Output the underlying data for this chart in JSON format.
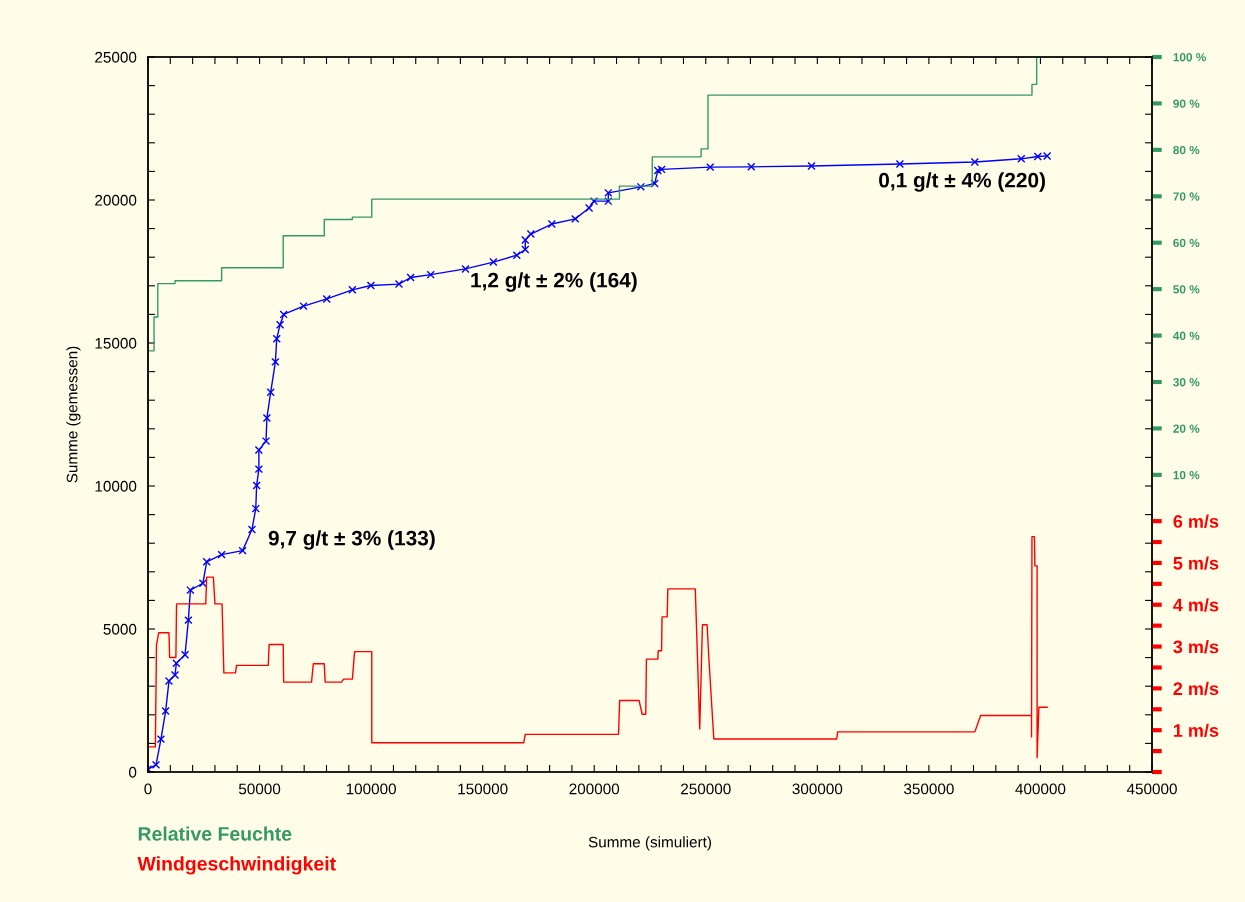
{
  "chart_data": {
    "type": "line",
    "xlabel": "Summe (simuliert)",
    "ylabel": "Summe (gemessen)",
    "grid": false,
    "legend": "bottom left",
    "xlim": [
      0,
      450000
    ],
    "xticks": [
      0,
      {
        "value": 10000,
        "label": null
      },
      {
        "value": 20000,
        "label": null
      },
      {
        "value": 30000,
        "label": null
      },
      {
        "value": 40000,
        "label": null
      },
      50000,
      {
        "value": 60000,
        "label": null
      },
      {
        "value": 70000,
        "label": null
      },
      {
        "value": 80000,
        "label": null
      },
      {
        "value": 90000,
        "label": null
      },
      100000,
      {
        "value": 110000,
        "label": null
      },
      {
        "value": 120000,
        "label": null
      },
      {
        "value": 130000,
        "label": null
      },
      {
        "value": 140000,
        "label": null
      },
      150000,
      {
        "value": 160000,
        "label": null
      },
      {
        "value": 170000,
        "label": null
      },
      {
        "value": 180000,
        "label": null
      },
      {
        "value": 190000,
        "label": null
      },
      200000,
      {
        "value": 210000,
        "label": null
      },
      {
        "value": 220000,
        "label": null
      },
      {
        "value": 230000,
        "label": null
      },
      {
        "value": 240000,
        "label": null
      },
      250000,
      {
        "value": 260000,
        "label": null
      },
      {
        "value": 270000,
        "label": null
      },
      {
        "value": 280000,
        "label": null
      },
      {
        "value": 290000,
        "label": null
      },
      300000,
      {
        "value": 310000,
        "label": null
      },
      {
        "value": 320000,
        "label": null
      },
      {
        "value": 330000,
        "label": null
      },
      {
        "value": 340000,
        "label": null
      },
      350000,
      {
        "value": 360000,
        "label": null
      },
      {
        "value": 370000,
        "label": null
      },
      {
        "value": 380000,
        "label": null
      },
      {
        "value": 390000,
        "label": null
      },
      400000,
      {
        "value": 410000,
        "label": null
      },
      {
        "value": 420000,
        "label": null
      },
      {
        "value": 430000,
        "label": null
      },
      {
        "value": 440000,
        "label": null
      },
      450000
    ],
    "ylim": [
      0,
      25000
    ],
    "yticks": [
      0,
      {
        "value": 1000,
        "label": null
      },
      {
        "value": 2000,
        "label": null
      },
      {
        "value": 3000,
        "label": null
      },
      {
        "value": 4000,
        "label": null
      },
      5000,
      {
        "value": 6000,
        "label": null
      },
      {
        "value": 7000,
        "label": null
      },
      {
        "value": 8000,
        "label": null
      },
      {
        "value": 9000,
        "label": null
      },
      10000,
      {
        "value": 11000,
        "label": null
      },
      {
        "value": 12000,
        "label": null
      },
      {
        "value": 13000,
        "label": null
      },
      {
        "value": 14000,
        "label": null
      },
      15000,
      {
        "value": 16000,
        "label": null
      },
      {
        "value": 17000,
        "label": null
      },
      {
        "value": 18000,
        "label": null
      },
      {
        "value": 19000,
        "label": null
      },
      20000,
      {
        "value": 21000,
        "label": null
      },
      {
        "value": 22000,
        "label": null
      },
      {
        "value": 23000,
        "label": null
      },
      {
        "value": 24000,
        "label": null
      },
      25000
    ],
    "y2lim": [
      -54,
      100
    ],
    "y2ticks": [
      {
        "value": 10,
        "label": "10 %"
      },
      {
        "value": 20,
        "label": "20 %"
      },
      {
        "value": 30,
        "label": "30 %"
      },
      {
        "value": 40,
        "label": "40 %"
      },
      {
        "value": 50,
        "label": "50 %"
      },
      {
        "value": 60,
        "label": "60 %"
      },
      {
        "value": 70,
        "label": "70 %"
      },
      {
        "value": 80,
        "label": "80 %"
      },
      {
        "value": 90,
        "label": "90 %"
      },
      {
        "value": 100,
        "label": "100 %"
      }
    ],
    "y3lim": [
      0,
      17.1
    ],
    "y3ticks": [
      {
        "value": 0,
        "label": null
      },
      {
        "value": 0.5,
        "label": null
      },
      {
        "value": 1,
        "label": "1 m/s"
      },
      {
        "value": 1.5,
        "label": null
      },
      {
        "value": 2,
        "label": "2 m/s"
      },
      {
        "value": 2.5,
        "label": null
      },
      {
        "value": 3,
        "label": "3 m/s"
      },
      {
        "value": 3.5,
        "label": null
      },
      {
        "value": 4,
        "label": "4 m/s"
      },
      {
        "value": 4.5,
        "label": null
      },
      {
        "value": 5,
        "label": "5 m/s"
      },
      {
        "value": 5.5,
        "label": null
      },
      {
        "value": 6,
        "label": "6 m/s"
      }
    ],
    "annotations": [
      "9,7 g/t ± 3% (133)",
      "1,2 g/t ± 2% (164)",
      "0,1 g/t ± 4% (220)"
    ],
    "series": [
      {
        "type": "step",
        "axis": "y2",
        "name": "Relative Feuchte",
        "color": "#339966",
        "marker": "none",
        "x": [
          0,
          2700,
          4400,
          12100,
          33000,
          60600,
          79000,
          91600,
          100300,
          211300,
          226000,
          247900,
          251000,
          396200,
          398300
        ],
        "values": [
          36.7,
          44.0,
          51.2,
          51.8,
          54.6,
          61.5,
          65.0,
          65.5,
          69.4,
          72.2,
          78.5,
          80.2,
          91.8,
          94.1,
          100
        ]
      },
      {
        "type": "line",
        "axis": "y3",
        "name": "Windgeschwindigkeit",
        "color": "#ff0000",
        "marker": "none",
        "x": [
          0,
          3300,
          3800,
          4800,
          9400,
          9700,
          12500,
          12800,
          25900,
          26300,
          29300,
          30000,
          33200,
          34000,
          39200,
          39700,
          53900,
          54300,
          60600,
          60800,
          73300,
          74100,
          79000,
          79400,
          86700,
          87700,
          91600,
          92600,
          100300,
          100300,
          168400,
          169100,
          210900,
          211400,
          220100,
          221500,
          223100,
          223400,
          228500,
          228700,
          230200,
          230400,
          232700,
          233000,
          245300,
          247300,
          248500,
          250600,
          251300,
          253600,
          308700,
          309100,
          370600,
          373200,
          396000,
          396000,
          396200,
          397300,
          397500,
          398500,
          398500,
          399300,
          403000
        ],
        "values": [
          0.6,
          0.6,
          3.04,
          3.33,
          3.33,
          2.74,
          2.74,
          4.02,
          4.02,
          4.66,
          4.66,
          4.02,
          4.02,
          2.37,
          2.37,
          2.55,
          2.55,
          3.05,
          3.05,
          2.15,
          2.15,
          2.59,
          2.59,
          2.15,
          2.15,
          2.22,
          2.22,
          2.88,
          2.88,
          0.7,
          0.7,
          0.9,
          0.9,
          1.71,
          1.71,
          1.38,
          1.38,
          2.7,
          2.7,
          2.9,
          2.9,
          3.71,
          3.71,
          4.38,
          4.38,
          1.03,
          3.52,
          3.52,
          2.8,
          0.79,
          0.79,
          0.96,
          0.96,
          1.35,
          1.35,
          0.84,
          5.63,
          5.63,
          4.93,
          4.93,
          0.34,
          1.55,
          1.55
        ]
      },
      {
        "axis": "y",
        "color": "#0000ff",
        "marker": "cross",
        "x": [
          0,
          3600,
          5800,
          7900,
          9400,
          12100,
          12700,
          16600,
          18100,
          19000,
          24600,
          26300,
          33000,
          42400,
          46600,
          48300,
          48700,
          49700,
          49700,
          52900,
          53300,
          55000,
          57100,
          57700,
          59200,
          60800,
          69700,
          80100,
          91600,
          99900,
          112500,
          117700,
          126700,
          142300,
          154800,
          165300,
          169100,
          169100,
          171600,
          181000,
          191500,
          197700,
          199900,
          206300,
          206300,
          220900,
          227100,
          228500,
          230200,
          252000,
          270400,
          297400,
          337000,
          370600,
          391400,
          398800,
          403000
        ],
        "values": [
          100,
          250,
          1150,
          2130,
          3180,
          3390,
          3800,
          4100,
          5310,
          6360,
          6600,
          7350,
          7600,
          7740,
          8480,
          9210,
          10020,
          10590,
          11260,
          11570,
          12380,
          13280,
          14340,
          15150,
          15640,
          16000,
          16290,
          16540,
          16860,
          17010,
          17060,
          17290,
          17390,
          17590,
          17830,
          18070,
          18270,
          18600,
          18810,
          19160,
          19340,
          19720,
          19960,
          19960,
          20250,
          20460,
          20580,
          21030,
          21070,
          21150,
          21160,
          21190,
          21260,
          21330,
          21440,
          21520,
          21540
        ]
      }
    ]
  }
}
